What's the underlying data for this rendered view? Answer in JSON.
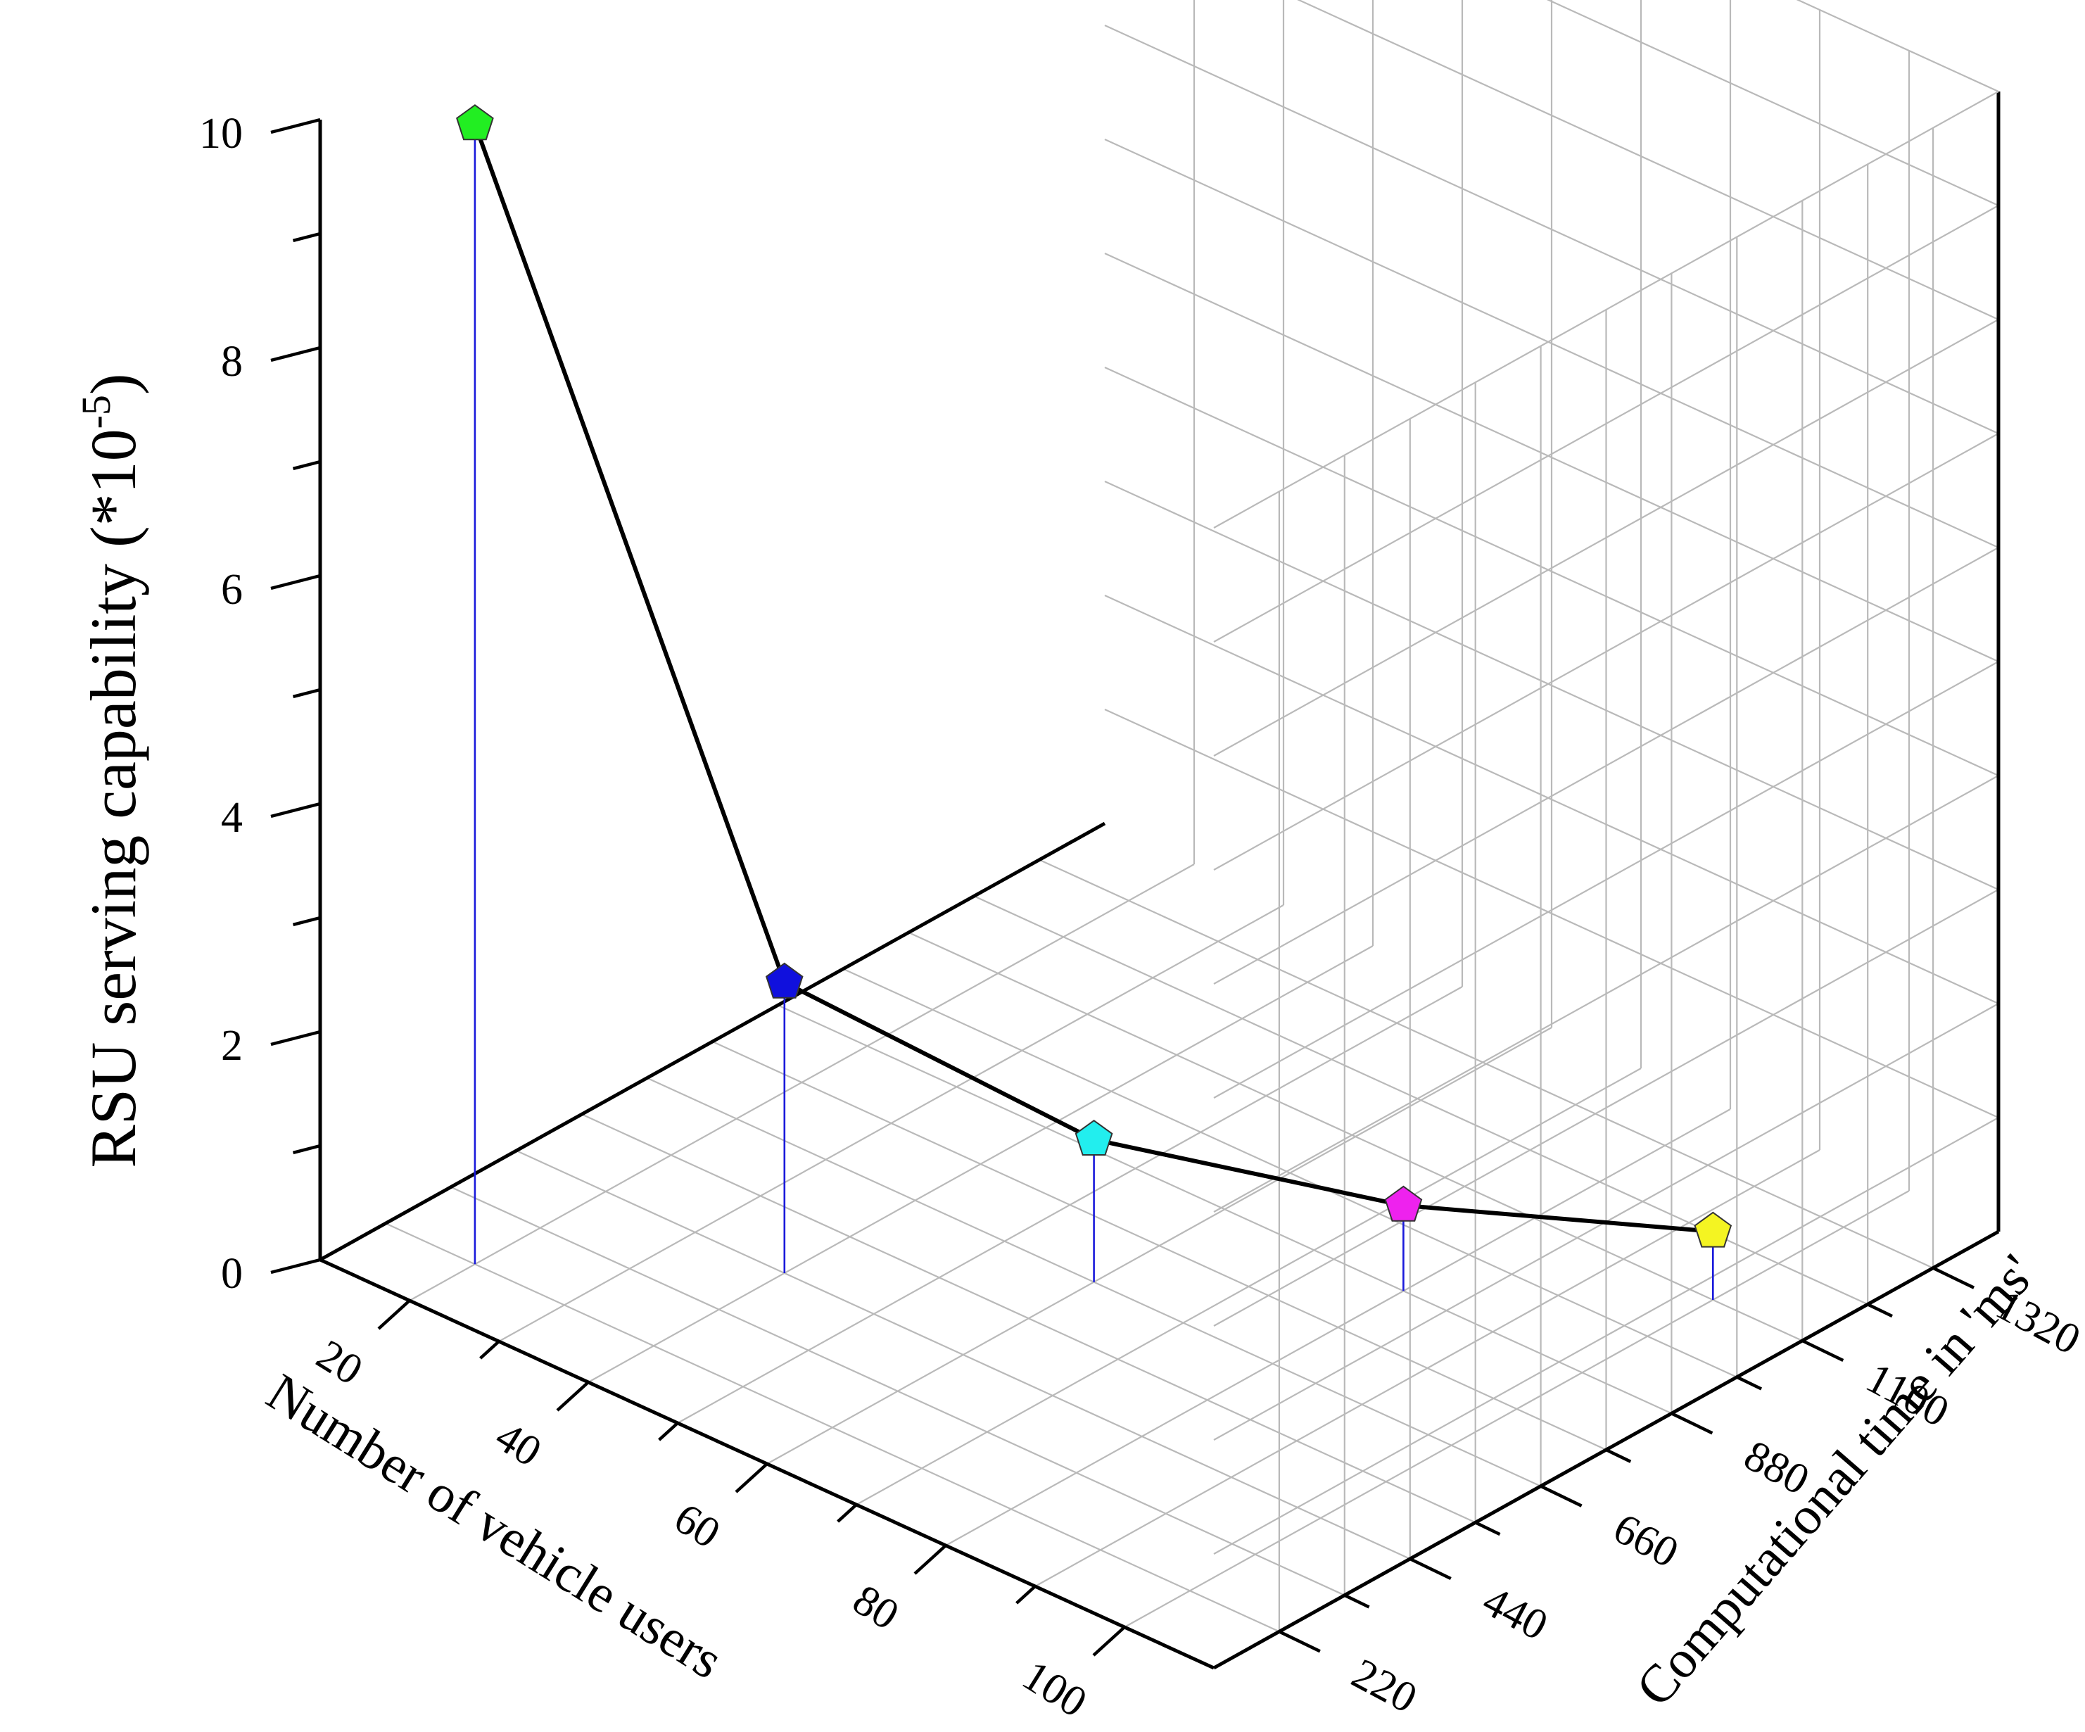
{
  "chart_data": {
    "type": "scatter",
    "projection": "3d",
    "title": "",
    "xlabel": "Number of vehicle users",
    "ylabel": "Computational time in 'ms'",
    "zlabel": "RSU serving capability (*10",
    "zlabel_exponent": "-5",
    "zlabel_close": ")",
    "x_ticks": [
      "20",
      "40",
      "60",
      "80",
      "100"
    ],
    "y_ticks": [
      "220",
      "440",
      "660",
      "880",
      "1100",
      "1320"
    ],
    "z_ticks": [
      "0",
      "2",
      "4",
      "6",
      "8",
      "10"
    ],
    "xlim": [
      10,
      110
    ],
    "ylim": [
      110,
      1430
    ],
    "zlim": [
      0,
      10
    ],
    "grid": true,
    "series": [
      {
        "x": [
          20,
          40,
          60,
          80,
          100
        ],
        "y": [
          220,
          440,
          660,
          880,
          1100
        ],
        "z": [
          10.0,
          2.55,
          1.25,
          0.75,
          0.6
        ],
        "marker": "pentagon",
        "marker_colors": [
          "#22ee22",
          "#1010dd",
          "#22eeee",
          "#ee22ee",
          "#f4f422"
        ],
        "line_color": "#000000",
        "stem_color": "#1a1adb"
      }
    ]
  }
}
